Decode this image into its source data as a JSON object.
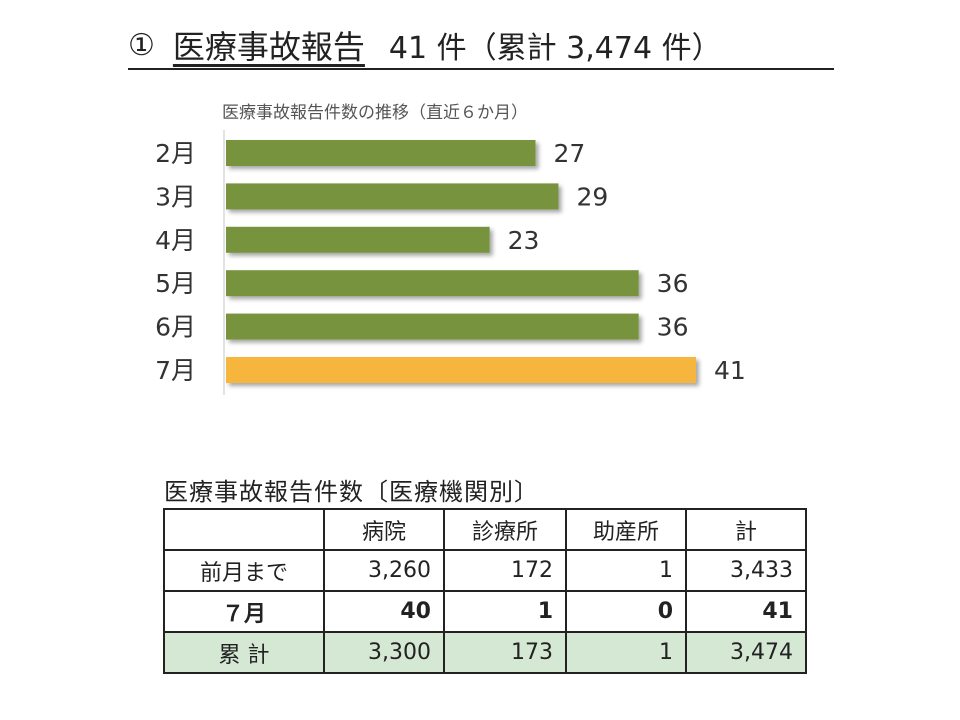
{
  "title": {
    "number": "①",
    "name": "医療事故報告",
    "count": "41 件（累計 3,474 件）"
  },
  "chart_data": {
    "type": "bar",
    "orientation": "horizontal",
    "title": "医療事故報告件数の推移（直近６か月）",
    "categories": [
      "2月",
      "3月",
      "4月",
      "5月",
      "6月",
      "7月"
    ],
    "values": [
      27,
      29,
      23,
      36,
      36,
      41
    ],
    "value_labels": [
      "27",
      "29",
      "23",
      "36",
      "36",
      "41"
    ],
    "colors": [
      "#77933c",
      "#77933c",
      "#77933c",
      "#77933c",
      "#77933c",
      "#f6b53c"
    ],
    "xlim": [
      0,
      41
    ],
    "grid": false,
    "legend": "none"
  },
  "table": {
    "caption": "医療事故報告件数〔医療機関別〕",
    "headers": [
      "",
      "病院",
      "診療所",
      "助産所",
      "計"
    ],
    "rows": [
      [
        "前月まで",
        "3,260",
        "172",
        "1",
        "3,433"
      ],
      [
        "７月",
        "40",
        "1",
        "0",
        "41"
      ],
      [
        "累 計",
        "3,300",
        "173",
        "1",
        "3,474"
      ]
    ],
    "total_row_color": "#d5e8d4"
  }
}
